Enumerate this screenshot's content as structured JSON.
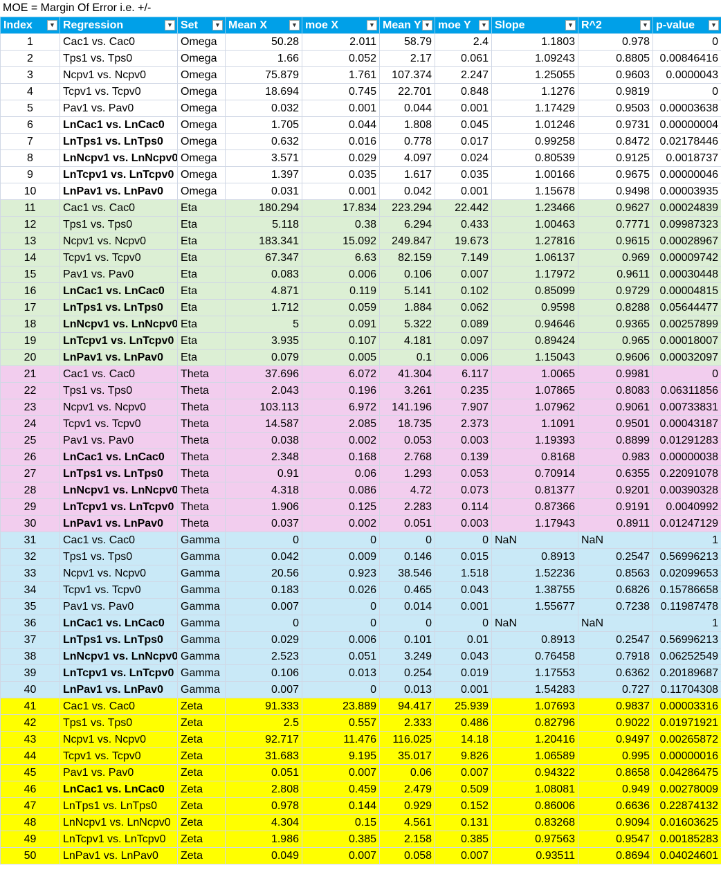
{
  "note": "MOE = Margin Of Error i.e. +/-",
  "columns": [
    "Index",
    "Regression",
    "Set",
    "Mean X",
    "moe X",
    "Mean Y",
    "moe Y",
    "Slope",
    "R^2",
    "p-value"
  ],
  "rows": [
    [
      "1",
      "Cac1 vs. Cac0",
      "Omega",
      "50.28",
      "2.011",
      "58.79",
      "2.4",
      "1.1803",
      "0.978",
      "0"
    ],
    [
      "2",
      "Tps1 vs. Tps0",
      "Omega",
      "1.66",
      "0.052",
      "2.17",
      "0.061",
      "1.09243",
      "0.8805",
      "0.00846416"
    ],
    [
      "3",
      "Ncpv1 vs. Ncpv0",
      "Omega",
      "75.879",
      "1.761",
      "107.374",
      "2.247",
      "1.25055",
      "0.9603",
      "0.0000043"
    ],
    [
      "4",
      "Tcpv1 vs. Tcpv0",
      "Omega",
      "18.694",
      "0.745",
      "22.701",
      "0.848",
      "1.1276",
      "0.9819",
      "0"
    ],
    [
      "5",
      "Pav1 vs. Pav0",
      "Omega",
      "0.032",
      "0.001",
      "0.044",
      "0.001",
      "1.17429",
      "0.9503",
      "0.00003638"
    ],
    [
      "6",
      "LnCac1 vs. LnCac0",
      "Omega",
      "1.705",
      "0.044",
      "1.808",
      "0.045",
      "1.01246",
      "0.9731",
      "0.00000004"
    ],
    [
      "7",
      "LnTps1 vs. LnTps0",
      "Omega",
      "0.632",
      "0.016",
      "0.778",
      "0.017",
      "0.99258",
      "0.8472",
      "0.02178446"
    ],
    [
      "8",
      "LnNcpv1 vs. LnNcpv0",
      "Omega",
      "3.571",
      "0.029",
      "4.097",
      "0.024",
      "0.80539",
      "0.9125",
      "0.0018737"
    ],
    [
      "9",
      "LnTcpv1 vs. LnTcpv0",
      "Omega",
      "1.397",
      "0.035",
      "1.617",
      "0.035",
      "1.00166",
      "0.9675",
      "0.00000046"
    ],
    [
      "10",
      "LnPav1 vs. LnPav0",
      "Omega",
      "0.031",
      "0.001",
      "0.042",
      "0.001",
      "1.15678",
      "0.9498",
      "0.00003935"
    ],
    [
      "11",
      "Cac1 vs. Cac0",
      "Eta",
      "180.294",
      "17.834",
      "223.294",
      "22.442",
      "1.23466",
      "0.9627",
      "0.00024839"
    ],
    [
      "12",
      "Tps1 vs. Tps0",
      "Eta",
      "5.118",
      "0.38",
      "6.294",
      "0.433",
      "1.00463",
      "0.7771",
      "0.09987323"
    ],
    [
      "13",
      "Ncpv1 vs. Ncpv0",
      "Eta",
      "183.341",
      "15.092",
      "249.847",
      "19.673",
      "1.27816",
      "0.9615",
      "0.00028967"
    ],
    [
      "14",
      "Tcpv1 vs. Tcpv0",
      "Eta",
      "67.347",
      "6.63",
      "82.159",
      "7.149",
      "1.06137",
      "0.969",
      "0.00009742"
    ],
    [
      "15",
      "Pav1 vs. Pav0",
      "Eta",
      "0.083",
      "0.006",
      "0.106",
      "0.007",
      "1.17972",
      "0.9611",
      "0.00030448"
    ],
    [
      "16",
      "LnCac1 vs. LnCac0",
      "Eta",
      "4.871",
      "0.119",
      "5.141",
      "0.102",
      "0.85099",
      "0.9729",
      "0.00004815"
    ],
    [
      "17",
      "LnTps1 vs. LnTps0",
      "Eta",
      "1.712",
      "0.059",
      "1.884",
      "0.062",
      "0.9598",
      "0.8288",
      "0.05644477"
    ],
    [
      "18",
      "LnNcpv1 vs. LnNcpv0",
      "Eta",
      "5",
      "0.091",
      "5.322",
      "0.089",
      "0.94646",
      "0.9365",
      "0.00257899"
    ],
    [
      "19",
      "LnTcpv1 vs. LnTcpv0",
      "Eta",
      "3.935",
      "0.107",
      "4.181",
      "0.097",
      "0.89424",
      "0.965",
      "0.00018007"
    ],
    [
      "20",
      "LnPav1 vs. LnPav0",
      "Eta",
      "0.079",
      "0.005",
      "0.1",
      "0.006",
      "1.15043",
      "0.9606",
      "0.00032097"
    ],
    [
      "21",
      "Cac1 vs. Cac0",
      "Theta",
      "37.696",
      "6.072",
      "41.304",
      "6.117",
      "1.0065",
      "0.9981",
      "0"
    ],
    [
      "22",
      "Tps1 vs. Tps0",
      "Theta",
      "2.043",
      "0.196",
      "3.261",
      "0.235",
      "1.07865",
      "0.8083",
      "0.06311856"
    ],
    [
      "23",
      "Ncpv1 vs. Ncpv0",
      "Theta",
      "103.113",
      "6.972",
      "141.196",
      "7.907",
      "1.07962",
      "0.9061",
      "0.00733831"
    ],
    [
      "24",
      "Tcpv1 vs. Tcpv0",
      "Theta",
      "14.587",
      "2.085",
      "18.735",
      "2.373",
      "1.1091",
      "0.9501",
      "0.00043187"
    ],
    [
      "25",
      "Pav1 vs. Pav0",
      "Theta",
      "0.038",
      "0.002",
      "0.053",
      "0.003",
      "1.19393",
      "0.8899",
      "0.01291283"
    ],
    [
      "26",
      "LnCac1 vs. LnCac0",
      "Theta",
      "2.348",
      "0.168",
      "2.768",
      "0.139",
      "0.8168",
      "0.983",
      "0.00000038"
    ],
    [
      "27",
      "LnTps1 vs. LnTps0",
      "Theta",
      "0.91",
      "0.06",
      "1.293",
      "0.053",
      "0.70914",
      "0.6355",
      "0.22091078"
    ],
    [
      "28",
      "LnNcpv1 vs. LnNcpv0",
      "Theta",
      "4.318",
      "0.086",
      "4.72",
      "0.073",
      "0.81377",
      "0.9201",
      "0.00390328"
    ],
    [
      "29",
      "LnTcpv1 vs. LnTcpv0",
      "Theta",
      "1.906",
      "0.125",
      "2.283",
      "0.114",
      "0.87366",
      "0.9191",
      "0.0040992"
    ],
    [
      "30",
      "LnPav1 vs. LnPav0",
      "Theta",
      "0.037",
      "0.002",
      "0.051",
      "0.003",
      "1.17943",
      "0.8911",
      "0.01247129"
    ],
    [
      "31",
      "Cac1 vs. Cac0",
      "Gamma",
      "0",
      "0",
      "0",
      "0",
      "NaN",
      "NaN",
      "1"
    ],
    [
      "32",
      "Tps1 vs. Tps0",
      "Gamma",
      "0.042",
      "0.009",
      "0.146",
      "0.015",
      "0.8913",
      "0.2547",
      "0.56996213"
    ],
    [
      "33",
      "Ncpv1 vs. Ncpv0",
      "Gamma",
      "20.56",
      "0.923",
      "38.546",
      "1.518",
      "1.52236",
      "0.8563",
      "0.02099653"
    ],
    [
      "34",
      "Tcpv1 vs. Tcpv0",
      "Gamma",
      "0.183",
      "0.026",
      "0.465",
      "0.043",
      "1.38755",
      "0.6826",
      "0.15786658"
    ],
    [
      "35",
      "Pav1 vs. Pav0",
      "Gamma",
      "0.007",
      "0",
      "0.014",
      "0.001",
      "1.55677",
      "0.7238",
      "0.11987478"
    ],
    [
      "36",
      "LnCac1 vs. LnCac0",
      "Gamma",
      "0",
      "0",
      "0",
      "0",
      "NaN",
      "NaN",
      "1"
    ],
    [
      "37",
      "LnTps1 vs. LnTps0",
      "Gamma",
      "0.029",
      "0.006",
      "0.101",
      "0.01",
      "0.8913",
      "0.2547",
      "0.56996213"
    ],
    [
      "38",
      "LnNcpv1 vs. LnNcpv0",
      "Gamma",
      "2.523",
      "0.051",
      "3.249",
      "0.043",
      "0.76458",
      "0.7918",
      "0.06252549"
    ],
    [
      "39",
      "LnTcpv1 vs. LnTcpv0",
      "Gamma",
      "0.106",
      "0.013",
      "0.254",
      "0.019",
      "1.17553",
      "0.6362",
      "0.20189687"
    ],
    [
      "40",
      "LnPav1 vs. LnPav0",
      "Gamma",
      "0.007",
      "0",
      "0.013",
      "0.001",
      "1.54283",
      "0.727",
      "0.11704308"
    ],
    [
      "41",
      "Cac1 vs. Cac0",
      "Zeta",
      "91.333",
      "23.889",
      "94.417",
      "25.939",
      "1.07693",
      "0.9837",
      "0.00003316"
    ],
    [
      "42",
      "Tps1 vs. Tps0",
      "Zeta",
      "2.5",
      "0.557",
      "2.333",
      "0.486",
      "0.82796",
      "0.9022",
      "0.01971921"
    ],
    [
      "43",
      "Ncpv1 vs. Ncpv0",
      "Zeta",
      "92.717",
      "11.476",
      "116.025",
      "14.18",
      "1.20416",
      "0.9497",
      "0.00265872"
    ],
    [
      "44",
      "Tcpv1 vs. Tcpv0",
      "Zeta",
      "31.683",
      "9.195",
      "35.017",
      "9.826",
      "1.06589",
      "0.995",
      "0.00000016"
    ],
    [
      "45",
      "Pav1 vs. Pav0",
      "Zeta",
      "0.051",
      "0.007",
      "0.06",
      "0.007",
      "0.94322",
      "0.8658",
      "0.04286475"
    ],
    [
      "46",
      "LnCac1 vs. LnCac0",
      "Zeta",
      "2.808",
      "0.459",
      "2.479",
      "0.509",
      "1.08081",
      "0.949",
      "0.00278009"
    ],
    [
      "47",
      "LnTps1 vs. LnTps0",
      "Zeta",
      "0.978",
      "0.144",
      "0.929",
      "0.152",
      "0.86006",
      "0.6636",
      "0.22874132"
    ],
    [
      "48",
      "LnNcpv1 vs. LnNcpv0",
      "Zeta",
      "4.304",
      "0.15",
      "4.561",
      "0.131",
      "0.83268",
      "0.9094",
      "0.01603625"
    ],
    [
      "49",
      "LnTcpv1 vs. LnTcpv0",
      "Zeta",
      "1.986",
      "0.385",
      "2.158",
      "0.385",
      "0.97563",
      "0.9547",
      "0.00185283"
    ],
    [
      "50",
      "LnPav1 vs. LnPav0",
      "Zeta",
      "0.049",
      "0.007",
      "0.058",
      "0.007",
      "0.93511",
      "0.8694",
      "0.04024601"
    ]
  ],
  "bold_regression_indices": [
    6,
    7,
    8,
    9,
    10,
    16,
    17,
    18,
    19,
    20,
    26,
    27,
    28,
    29,
    30,
    36,
    37,
    38,
    39,
    40,
    46
  ],
  "set_colors": {
    "Omega": "#ffffff",
    "Eta": "#dcefd4",
    "Theta": "#f2cdee",
    "Gamma": "#c9e9f7",
    "Zeta": "#ffff00"
  },
  "header_color": "#00a0e8",
  "icons": {
    "index_filter": "sort-descending-filter-icon",
    "filter": "dropdown-filter-icon"
  }
}
